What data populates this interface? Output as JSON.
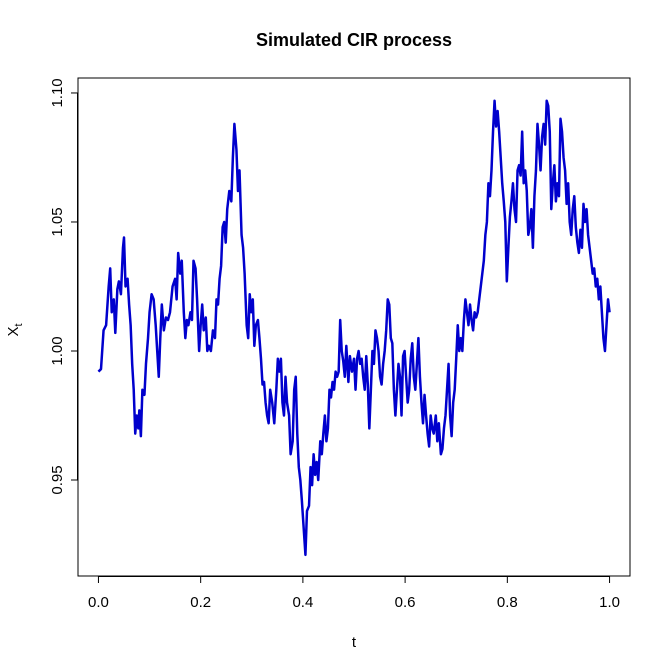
{
  "chart_data": {
    "type": "line",
    "title": "Simulated CIR process",
    "xlabel": "t",
    "ylabel": [
      "X",
      "t"
    ],
    "xlim": [
      -0.04,
      1.04
    ],
    "ylim": [
      0.9128,
      1.1058
    ],
    "xticks": [
      {
        "value": 0,
        "label": "0.0"
      },
      0.2,
      0.4,
      0.6,
      0.8,
      {
        "value": 1,
        "label": "1.0"
      }
    ],
    "yticks": [
      0.95,
      {
        "value": 1,
        "label": "1.00"
      },
      1.05,
      {
        "value": 1.1,
        "label": "1.10"
      }
    ],
    "grid": false,
    "x": [
      0.0,
      0.005,
      0.01,
      0.015,
      0.02,
      0.023,
      0.026,
      0.03,
      0.033,
      0.037,
      0.04,
      0.044,
      0.048,
      0.05,
      0.053,
      0.057,
      0.06,
      0.063,
      0.066,
      0.069,
      0.072,
      0.075,
      0.078,
      0.08,
      0.083,
      0.086,
      0.09,
      0.093,
      0.097,
      0.1,
      0.104,
      0.108,
      0.112,
      0.115,
      0.118,
      0.121,
      0.124,
      0.128,
      0.132,
      0.136,
      0.14,
      0.145,
      0.15,
      0.153,
      0.156,
      0.16,
      0.163,
      0.167,
      0.17,
      0.173,
      0.176,
      0.18,
      0.183,
      0.186,
      0.19,
      0.193,
      0.197,
      0.2,
      0.203,
      0.206,
      0.21,
      0.213,
      0.216,
      0.22,
      0.224,
      0.228,
      0.231,
      0.234,
      0.237,
      0.24,
      0.243,
      0.246,
      0.249,
      0.252,
      0.256,
      0.26,
      0.263,
      0.266,
      0.27,
      0.273,
      0.276,
      0.28,
      0.283,
      0.286,
      0.29,
      0.293,
      0.296,
      0.299,
      0.302,
      0.305,
      0.308,
      0.312,
      0.315,
      0.318,
      0.321,
      0.324,
      0.327,
      0.33,
      0.333,
      0.336,
      0.34,
      0.344,
      0.348,
      0.351,
      0.354,
      0.357,
      0.36,
      0.363,
      0.366,
      0.369,
      0.373,
      0.376,
      0.38,
      0.383,
      0.386,
      0.389,
      0.392,
      0.395,
      0.398,
      0.402,
      0.405,
      0.408,
      0.412,
      0.415,
      0.418,
      0.421,
      0.424,
      0.427,
      0.43,
      0.434,
      0.437,
      0.44,
      0.443,
      0.446,
      0.449,
      0.452,
      0.455,
      0.458,
      0.461,
      0.464,
      0.467,
      0.47,
      0.473,
      0.476,
      0.479,
      0.482,
      0.485,
      0.489,
      0.492,
      0.496,
      0.5,
      0.503,
      0.506,
      0.509,
      0.512,
      0.515,
      0.518,
      0.521,
      0.524,
      0.527,
      0.53,
      0.533,
      0.536,
      0.539,
      0.542,
      0.545,
      0.548,
      0.551,
      0.554,
      0.557,
      0.56,
      0.563,
      0.566,
      0.569,
      0.572,
      0.575,
      0.578,
      0.581,
      0.584,
      0.587,
      0.59,
      0.593,
      0.596,
      0.599,
      0.602,
      0.605,
      0.608,
      0.611,
      0.614,
      0.617,
      0.62,
      0.623,
      0.626,
      0.629,
      0.632,
      0.635,
      0.638,
      0.641,
      0.644,
      0.647,
      0.65,
      0.653,
      0.656,
      0.66,
      0.663,
      0.666,
      0.67,
      0.673,
      0.676,
      0.679,
      0.682,
      0.685,
      0.688,
      0.691,
      0.694,
      0.697,
      0.7,
      0.703,
      0.706,
      0.709,
      0.712,
      0.715,
      0.718,
      0.721,
      0.724,
      0.727,
      0.73,
      0.733,
      0.736,
      0.739,
      0.742,
      0.745,
      0.748,
      0.751,
      0.754,
      0.757,
      0.76,
      0.763,
      0.766,
      0.769,
      0.772,
      0.775,
      0.778,
      0.781,
      0.784,
      0.787,
      0.79,
      0.793,
      0.796,
      0.799,
      0.802,
      0.805,
      0.808,
      0.811,
      0.814,
      0.817,
      0.82,
      0.823,
      0.826,
      0.829,
      0.832,
      0.835,
      0.838,
      0.841,
      0.844,
      0.847,
      0.85,
      0.853,
      0.856,
      0.859,
      0.862,
      0.865,
      0.868,
      0.871,
      0.874,
      0.877,
      0.88,
      0.883,
      0.886,
      0.889,
      0.892,
      0.895,
      0.898,
      0.901,
      0.904,
      0.907,
      0.91,
      0.913,
      0.916,
      0.919,
      0.922,
      0.925,
      0.928,
      0.931,
      0.934,
      0.937,
      0.94,
      0.943,
      0.946,
      0.949,
      0.952,
      0.955,
      0.958,
      0.961,
      0.964,
      0.967,
      0.97,
      0.973,
      0.976,
      0.979,
      0.982,
      0.985,
      0.988,
      0.991,
      0.994,
      0.997,
      1.0
    ],
    "series": [
      {
        "color": "#0000cd",
        "values": [
          0.992,
          0.993,
          1.008,
          1.01,
          1.025,
          1.032,
          1.015,
          1.02,
          1.007,
          1.024,
          1.027,
          1.022,
          1.04,
          1.044,
          1.025,
          1.028,
          1.018,
          1.01,
          0.995,
          0.985,
          0.968,
          0.975,
          0.97,
          0.977,
          0.967,
          0.985,
          0.983,
          0.995,
          1.005,
          1.015,
          1.022,
          1.02,
          1.01,
          1.0,
          0.99,
          1.005,
          1.018,
          1.008,
          1.013,
          1.012,
          1.015,
          1.025,
          1.028,
          1.02,
          1.038,
          1.03,
          1.035,
          1.015,
          1.005,
          1.012,
          1.01,
          1.015,
          1.012,
          1.035,
          1.032,
          1.02,
          1.0,
          1.01,
          1.018,
          1.008,
          1.013,
          1.0,
          1.002,
          1.0,
          1.008,
          1.005,
          1.02,
          1.018,
          1.028,
          1.033,
          1.048,
          1.05,
          1.042,
          1.055,
          1.062,
          1.058,
          1.075,
          1.088,
          1.078,
          1.062,
          1.07,
          1.045,
          1.04,
          1.03,
          1.01,
          1.005,
          1.022,
          1.015,
          1.02,
          1.002,
          1.01,
          1.012,
          1.005,
          0.997,
          0.987,
          0.988,
          0.98,
          0.975,
          0.972,
          0.985,
          0.98,
          0.972,
          0.985,
          0.997,
          0.992,
          0.997,
          0.98,
          0.975,
          0.99,
          0.98,
          0.975,
          0.96,
          0.965,
          0.985,
          0.99,
          0.968,
          0.955,
          0.95,
          0.942,
          0.93,
          0.921,
          0.938,
          0.94,
          0.955,
          0.948,
          0.96,
          0.952,
          0.957,
          0.95,
          0.965,
          0.96,
          0.968,
          0.975,
          0.965,
          0.97,
          0.985,
          0.982,
          0.988,
          0.985,
          0.992,
          0.99,
          0.992,
          1.012,
          1.0,
          0.996,
          0.99,
          1.002,
          0.988,
          0.998,
          0.992,
          0.997,
          0.985,
          0.997,
          1.0,
          0.995,
          0.997,
          0.99,
          0.985,
          0.998,
          0.987,
          0.97,
          0.985,
          1.0,
          0.995,
          1.008,
          1.005,
          1.0,
          0.99,
          0.987,
          0.995,
          1.0,
          1.008,
          1.02,
          1.018,
          1.005,
          1.003,
          0.985,
          0.975,
          0.985,
          0.995,
          0.99,
          0.975,
          0.998,
          1.0,
          0.99,
          0.98,
          0.985,
          0.997,
          1.003,
          0.99,
          0.985,
          0.995,
          1.005,
          0.99,
          0.98,
          0.972,
          0.983,
          0.975,
          0.968,
          0.963,
          0.975,
          0.97,
          0.968,
          0.975,
          0.965,
          0.972,
          0.96,
          0.962,
          0.97,
          0.975,
          0.985,
          0.995,
          0.975,
          0.967,
          0.98,
          0.985,
          0.997,
          1.01,
          1.0,
          1.005,
          1.0,
          1.012,
          1.02,
          1.015,
          1.01,
          1.018,
          1.012,
          1.008,
          1.015,
          1.013,
          1.015,
          1.02,
          1.025,
          1.03,
          1.035,
          1.045,
          1.05,
          1.065,
          1.06,
          1.07,
          1.085,
          1.097,
          1.087,
          1.093,
          1.085,
          1.075,
          1.065,
          1.058,
          1.05,
          1.027,
          1.04,
          1.052,
          1.058,
          1.065,
          1.055,
          1.05,
          1.07,
          1.072,
          1.068,
          1.085,
          1.065,
          1.07,
          1.062,
          1.045,
          1.048,
          1.055,
          1.04,
          1.06,
          1.07,
          1.088,
          1.08,
          1.07,
          1.083,
          1.088,
          1.08,
          1.097,
          1.095,
          1.085,
          1.055,
          1.065,
          1.072,
          1.058,
          1.065,
          1.06,
          1.09,
          1.085,
          1.075,
          1.07,
          1.057,
          1.065,
          1.05,
          1.045,
          1.055,
          1.06,
          1.048,
          1.042,
          1.038,
          1.047,
          1.04,
          1.057,
          1.05,
          1.055,
          1.045,
          1.04,
          1.035,
          1.03,
          1.032,
          1.025,
          1.028,
          1.02,
          1.025,
          1.015,
          1.005,
          1.0,
          1.01,
          1.02,
          1.015
        ]
      }
    ]
  }
}
